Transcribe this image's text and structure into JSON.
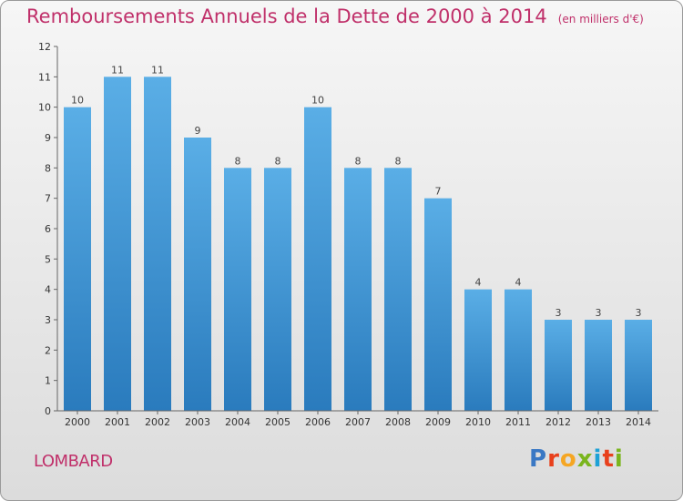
{
  "title": "Remboursements Annuels de la Dette de 2000 à 2014",
  "unit": "(en milliers d'€)",
  "commune": "LOMBARD",
  "brand": {
    "letters": [
      "P",
      "r",
      "o",
      "x",
      "i",
      "t",
      "i"
    ],
    "colors": [
      "#3a78c4",
      "#e8401c",
      "#f5a623",
      "#7ab51d",
      "#1da1d6",
      "#e8401c",
      "#7ab51d"
    ]
  },
  "colors": {
    "bar_light": "#5aaee6",
    "bar_dark": "#2a7bbd",
    "title": "#c0306a"
  },
  "chart_data": {
    "type": "bar",
    "categories": [
      "2000",
      "2001",
      "2002",
      "2003",
      "2004",
      "2005",
      "2006",
      "2007",
      "2008",
      "2009",
      "2010",
      "2011",
      "2012",
      "2013",
      "2014"
    ],
    "values": [
      10,
      11,
      11,
      9,
      8,
      8,
      10,
      8,
      8,
      7,
      4,
      4,
      3,
      3,
      3
    ],
    "yticks": [
      0,
      1,
      2,
      3,
      4,
      5,
      6,
      7,
      8,
      9,
      10,
      11,
      12
    ],
    "ylim": [
      0,
      12
    ],
    "grid": false
  }
}
